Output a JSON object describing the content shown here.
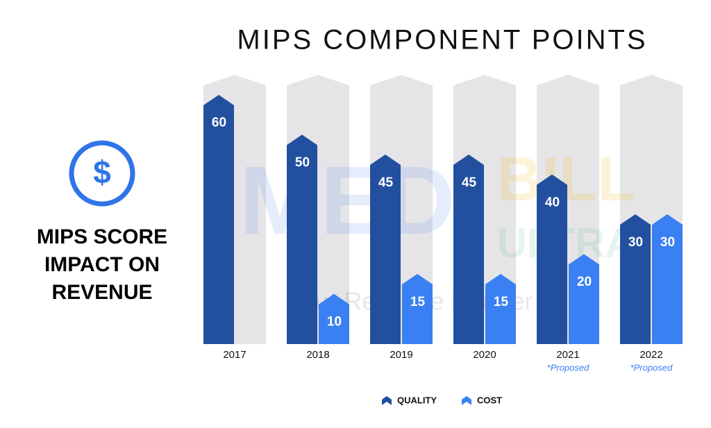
{
  "chart_data": {
    "type": "bar",
    "title": "MIPS COMPONENT POINTS",
    "side_text": [
      "MIPS SCORE",
      "IMPACT ON",
      "REVENUE"
    ],
    "icon_symbol": "$",
    "watermark": [
      "MED",
      "BILL",
      "ULTRA",
      "Your Revenue Partner"
    ],
    "categories": [
      "2017",
      "2018",
      "2019",
      "2020",
      "2021",
      "2022"
    ],
    "category_notes": [
      null,
      null,
      null,
      null,
      "*Proposed",
      "*Proposed"
    ],
    "series": [
      {
        "name": "QUALITY",
        "color": "#22509f",
        "values": [
          60,
          50,
          45,
          45,
          40,
          30
        ]
      },
      {
        "name": "COST",
        "color": "#3a80f2",
        "values": [
          null,
          10,
          15,
          15,
          20,
          30
        ]
      }
    ],
    "ylim": [
      0,
      65
    ],
    "background_color": "#e5e5e7",
    "legend": "bottom"
  }
}
